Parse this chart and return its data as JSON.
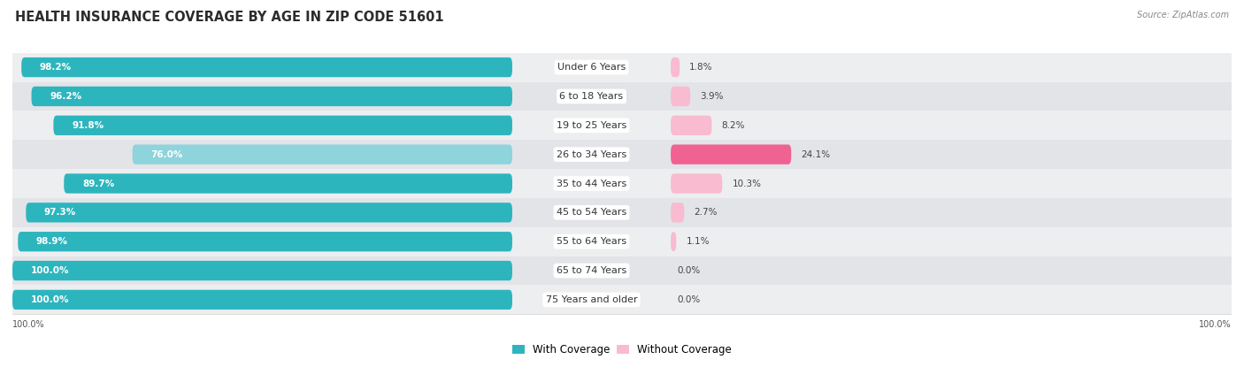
{
  "title": "HEALTH INSURANCE COVERAGE BY AGE IN ZIP CODE 51601",
  "source": "Source: ZipAtlas.com",
  "categories": [
    "Under 6 Years",
    "6 to 18 Years",
    "19 to 25 Years",
    "26 to 34 Years",
    "35 to 44 Years",
    "45 to 54 Years",
    "55 to 64 Years",
    "65 to 74 Years",
    "75 Years and older"
  ],
  "with_coverage": [
    98.2,
    96.2,
    91.8,
    76.0,
    89.7,
    97.3,
    98.9,
    100.0,
    100.0
  ],
  "without_coverage": [
    1.8,
    3.9,
    8.2,
    24.1,
    10.3,
    2.7,
    1.1,
    0.0,
    0.0
  ],
  "color_with_dark": "#2DB5BE",
  "color_with_light": "#8DD4DC",
  "color_without_dark": "#F06292",
  "color_without_light": "#F8BBD0",
  "row_bg_even": "#F0F2F4",
  "row_bg_odd": "#E6E8EA",
  "title_fontsize": 10.5,
  "label_fontsize": 8.0,
  "value_fontsize": 7.5,
  "legend_fontsize": 8.5
}
